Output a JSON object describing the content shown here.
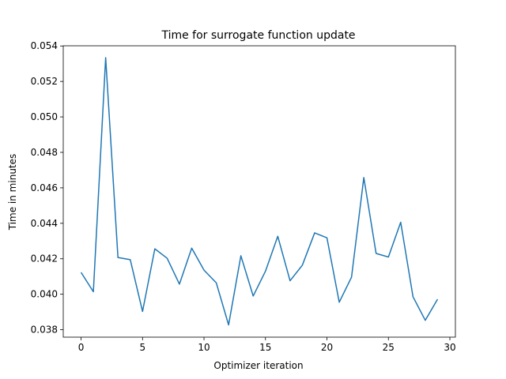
{
  "chart_data": {
    "type": "line",
    "title": "Time for surrogate function update",
    "xlabel": "Optimizer iteration",
    "ylabel": "Time in minutes",
    "xlim": [
      -1.45,
      30.45
    ],
    "ylim": [
      0.03758,
      0.05401
    ],
    "xticks": [
      0,
      5,
      10,
      15,
      20,
      25,
      30
    ],
    "xtick_labels": [
      "0",
      "5",
      "10",
      "15",
      "20",
      "25",
      "30"
    ],
    "yticks": [
      0.038,
      0.04,
      0.042,
      0.044,
      0.046,
      0.048,
      0.05,
      0.052,
      0.054
    ],
    "ytick_labels": [
      "0.038",
      "0.040",
      "0.042",
      "0.044",
      "0.046",
      "0.048",
      "0.050",
      "0.052",
      "0.054"
    ],
    "grid": false,
    "line_color": "#1f77b4",
    "series": [
      {
        "x": [
          0,
          1,
          2,
          3,
          4,
          5,
          6,
          7,
          8,
          9,
          10,
          11,
          12,
          13,
          14,
          15,
          16,
          17,
          18,
          19,
          20,
          21,
          22,
          23,
          24,
          25,
          26,
          27,
          28,
          29
        ],
        "y": [
          0.04123,
          0.04014,
          0.05334,
          0.04207,
          0.04195,
          0.03903,
          0.04256,
          0.04203,
          0.04057,
          0.0426,
          0.04136,
          0.04064,
          0.03827,
          0.04217,
          0.0399,
          0.0413,
          0.04327,
          0.04076,
          0.04164,
          0.04346,
          0.04318,
          0.03955,
          0.04096,
          0.04658,
          0.0423,
          0.0421,
          0.04406,
          0.03986,
          0.03853,
          0.03972
        ]
      }
    ]
  }
}
